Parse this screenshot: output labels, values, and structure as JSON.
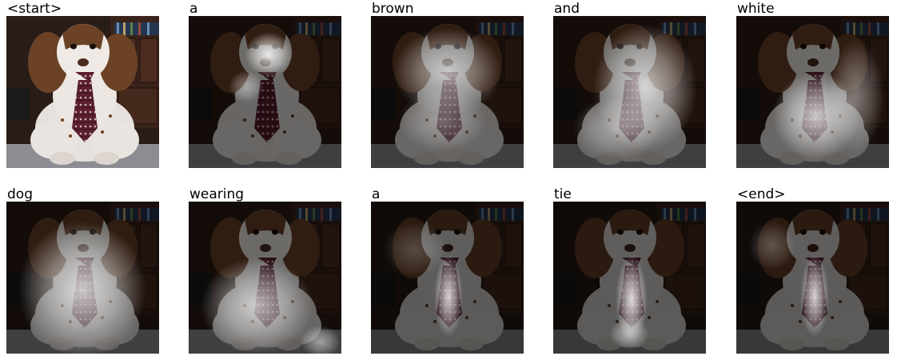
{
  "figure": {
    "panels": [
      {
        "word": "<start>",
        "attention": null
      },
      {
        "word": "a",
        "attention": "head-top"
      },
      {
        "word": "brown",
        "attention": "head-wide"
      },
      {
        "word": "and",
        "attention": "right-body"
      },
      {
        "word": "white",
        "attention": "body-right"
      },
      {
        "word": "dog",
        "attention": "whole-body"
      },
      {
        "word": "wearing",
        "attention": "lower-body"
      },
      {
        "word": "a",
        "attention": "tie"
      },
      {
        "word": "tie",
        "attention": "tie"
      },
      {
        "word": "<end>",
        "attention": "tie"
      }
    ],
    "colors": {
      "background": "#ffffff",
      "room": "#2a1c16",
      "fur_white": "#e9e4df",
      "fur_brown": "#6b4226",
      "tie": "#5c1f2e",
      "highlight": "#ffffff"
    }
  }
}
